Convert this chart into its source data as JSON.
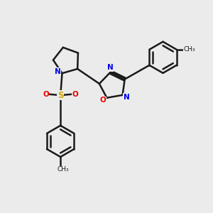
{
  "background_color": "#ebebeb",
  "bond_color": "#1a1a1a",
  "N_color": "#0000ee",
  "O_color": "#ee0000",
  "S_color": "#ccaa00",
  "line_width": 1.8,
  "figsize": [
    3.0,
    3.0
  ],
  "dpi": 100,
  "xlim": [
    0,
    10
  ],
  "ylim": [
    0,
    10
  ]
}
